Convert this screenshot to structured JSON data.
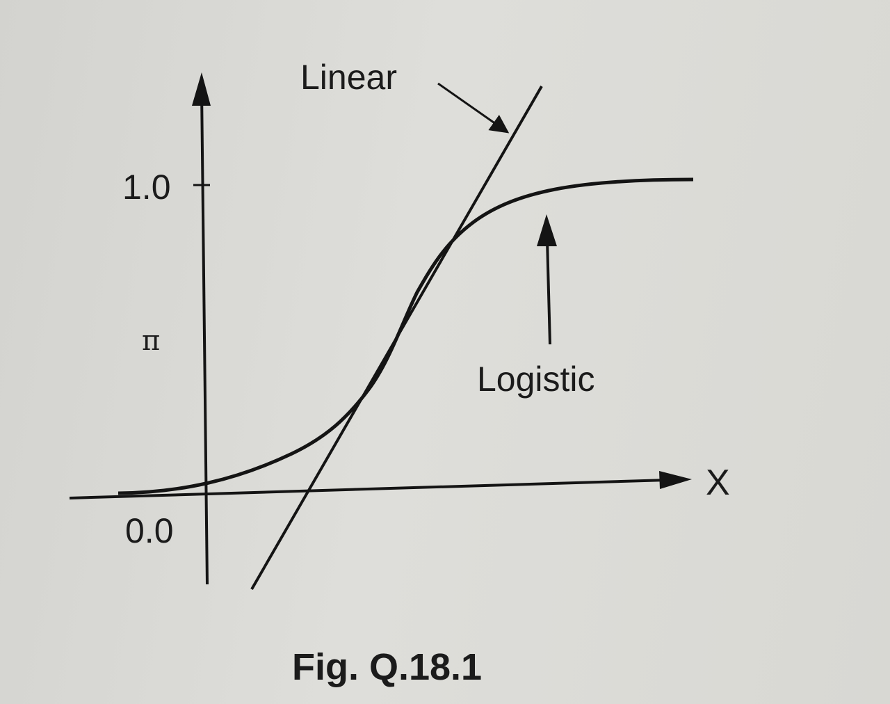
{
  "labels": {
    "linear": "Linear",
    "logistic": "Logistic",
    "x_axis": "X",
    "y_axis": "π",
    "y_tick_top": "1.0",
    "y_tick_bottom": "0.0"
  },
  "caption": "Fig. Q.18.1",
  "colors": {
    "ink": "#141414",
    "paper": "#dadad6"
  }
}
